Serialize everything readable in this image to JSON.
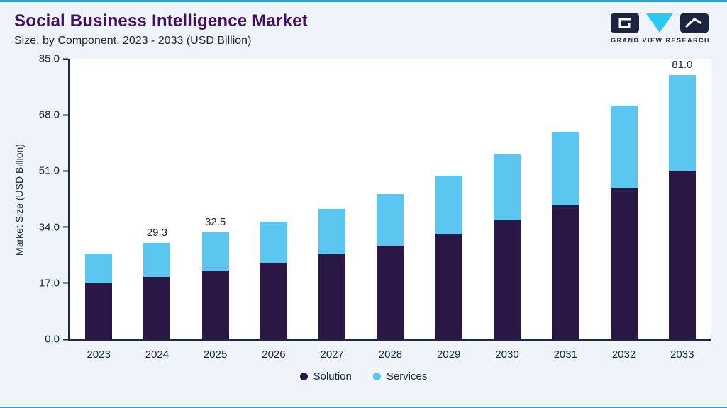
{
  "header": {
    "title": "Social Business Intelligence Market",
    "subtitle": "Size, by Component, 2023 - 2033 (USD Billion)"
  },
  "logo": {
    "text": "GRAND VIEW RESEARCH"
  },
  "chart_data": {
    "type": "bar",
    "stacked": true,
    "title": "Social Business Intelligence Market",
    "subtitle": "Size, by Component, 2023 - 2033 (USD Billion)",
    "ylabel": "Market Size (USD Billion)",
    "xlabel": "",
    "ylim": [
      0,
      85
    ],
    "yticks": [
      0,
      17,
      34,
      51,
      68,
      85
    ],
    "grid": false,
    "legend_position": "bottom",
    "categories": [
      "2023",
      "2024",
      "2025",
      "2026",
      "2027",
      "2028",
      "2029",
      "2030",
      "2031",
      "2032",
      "2033"
    ],
    "series": [
      {
        "name": "Solution",
        "color": "#2a1745",
        "values": [
          17.0,
          18.8,
          20.8,
          23.2,
          25.7,
          28.3,
          31.7,
          36.0,
          40.5,
          45.8,
          51.7
        ]
      },
      {
        "name": "Services",
        "color": "#5bc7f0",
        "values": [
          8.9,
          10.5,
          11.7,
          12.4,
          13.9,
          15.7,
          17.9,
          20.0,
          22.5,
          25.0,
          29.3
        ]
      }
    ],
    "totals": [
      25.9,
      29.3,
      32.5,
      35.6,
      39.6,
      44.0,
      49.6,
      56.0,
      63.0,
      70.8,
      81.0
    ],
    "value_labels": [
      "",
      "29.3",
      "32.5",
      "",
      "",
      "",
      "",
      "",
      "",
      "",
      "81.0"
    ]
  },
  "colors": {
    "accent_line": "#2d9fd6",
    "title": "#420f63",
    "axis": "#1b2a3e",
    "background": "#eef4f9",
    "plot_background": "#ffffff",
    "solution": "#2a1745",
    "services": "#5bc7f0"
  }
}
